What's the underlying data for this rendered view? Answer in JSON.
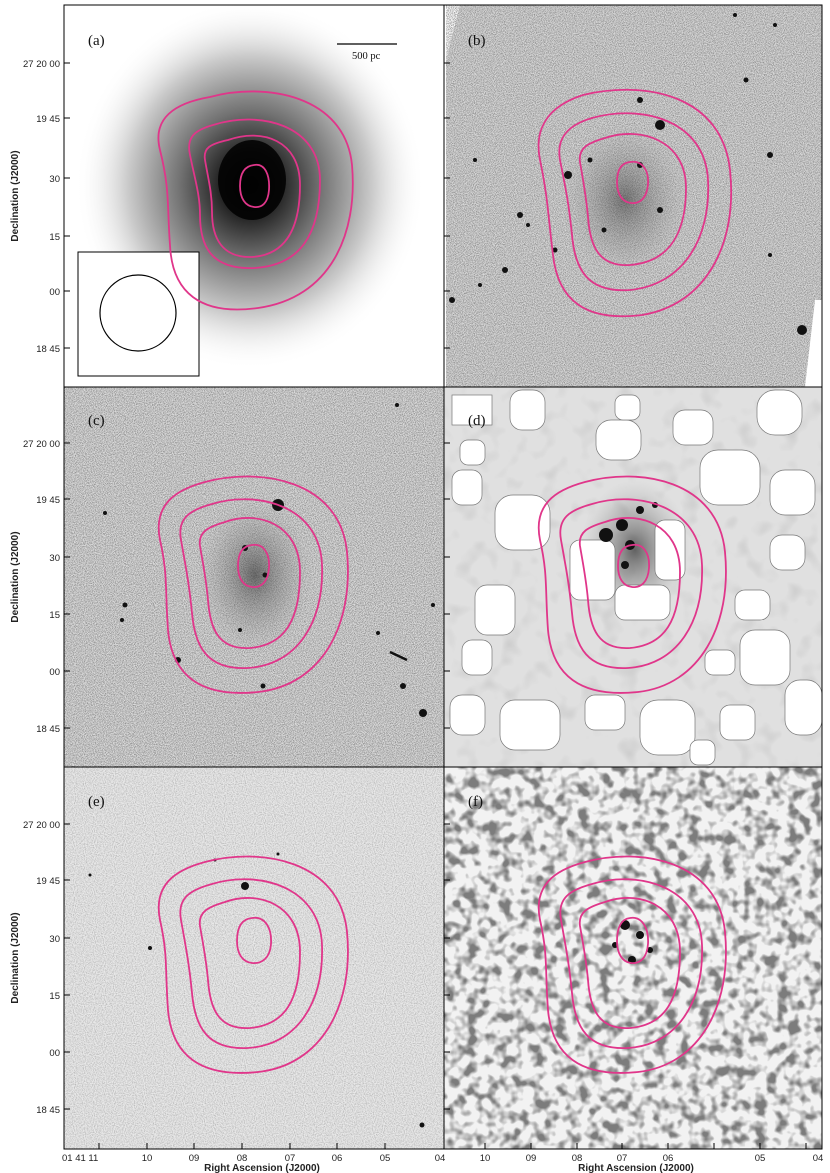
{
  "figure": {
    "panels": [
      {
        "id": "a",
        "label": "(a)",
        "style": "smooth"
      },
      {
        "id": "b",
        "label": "(b)",
        "style": "noisy"
      },
      {
        "id": "c",
        "label": "(c)",
        "style": "noisy"
      },
      {
        "id": "d",
        "label": "(d)",
        "style": "masked"
      },
      {
        "id": "e",
        "label": "(e)",
        "style": "uv"
      },
      {
        "id": "f",
        "label": "(f)",
        "style": "pixelated"
      }
    ],
    "scale_bar_label": "500 pc",
    "y_axis_title": "Declination (J2000)",
    "x_axis_title": "Right Ascension (J2000)",
    "dec_ticks": [
      "27 20 00",
      "19 45",
      "30",
      "15",
      "00",
      "18 45"
    ],
    "ra_ticks_left": [
      "01 41 11",
      "10",
      "09",
      "08",
      "07",
      "06",
      "05",
      "04"
    ],
    "ra_ticks_right": [
      "10",
      "09",
      "08",
      "07",
      "06",
      "05",
      "04"
    ],
    "contour_color": "#e0368a",
    "contour_levels": 4
  }
}
